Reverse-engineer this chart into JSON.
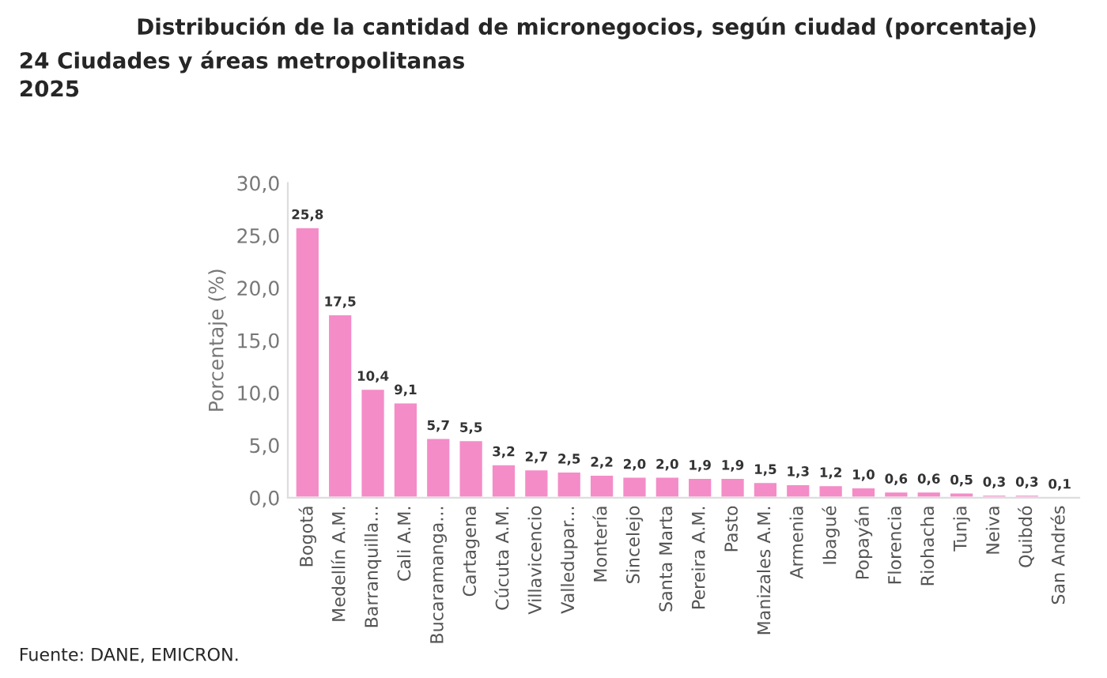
{
  "chart_data": {
    "type": "bar",
    "title": "Distribución de la cantidad de micronegocios, según ciudad (porcentaje)",
    "subtitle": "24 Ciudades y áreas metropolitanas\n2025",
    "ylabel": "Porcentaje (%)",
    "categories": [
      "Bogotá",
      "Medellín A.M.",
      "Barranquilla...",
      "Cali A.M.",
      "Bucaramanga...",
      "Cartagena",
      "Cúcuta A.M.",
      "Villavicencio",
      "Valledupar...",
      "Montería",
      "Sincelejo",
      "Santa Marta",
      "Pereira A.M.",
      "Pasto",
      "Manizales A.M.",
      "Armenia",
      "Ibagué",
      "Popayán",
      "Florencia",
      "Riohacha",
      "Tunja",
      "Neiva",
      "Quibdó",
      "San Andrés"
    ],
    "values": [
      25.8,
      17.5,
      10.4,
      9.1,
      5.7,
      5.5,
      3.2,
      2.7,
      2.5,
      2.2,
      2.0,
      2.0,
      1.9,
      1.9,
      1.5,
      1.3,
      1.2,
      1.0,
      0.6,
      0.6,
      0.5,
      0.3,
      0.3,
      0.1
    ],
    "value_labels": [
      "25,8",
      "17,5",
      "10,4",
      "9,1",
      "5,7",
      "5,5",
      "3,2",
      "2,7",
      "2,5",
      "2,2",
      "2,0",
      "2,0",
      "1,9",
      "1,9",
      "1,5",
      "1,3",
      "1,2",
      "1,0",
      "0,6",
      "0,6",
      "0,5",
      "0,3",
      "0,3",
      "0,1"
    ],
    "color": "#f48cc8",
    "ylim": [
      0,
      30
    ],
    "yticks": [
      {
        "value": 0,
        "label": "0,0"
      },
      {
        "value": 5,
        "label": "5,0"
      },
      {
        "value": 10,
        "label": "10,0"
      },
      {
        "value": 15,
        "label": "15,0"
      },
      {
        "value": 20,
        "label": "20,0"
      },
      {
        "value": 25,
        "label": "25,0"
      },
      {
        "value": 30,
        "label": "30,0"
      }
    ],
    "grid": false,
    "legend": false,
    "annotations": [
      "Fuente: DANE, EMICRON."
    ]
  }
}
